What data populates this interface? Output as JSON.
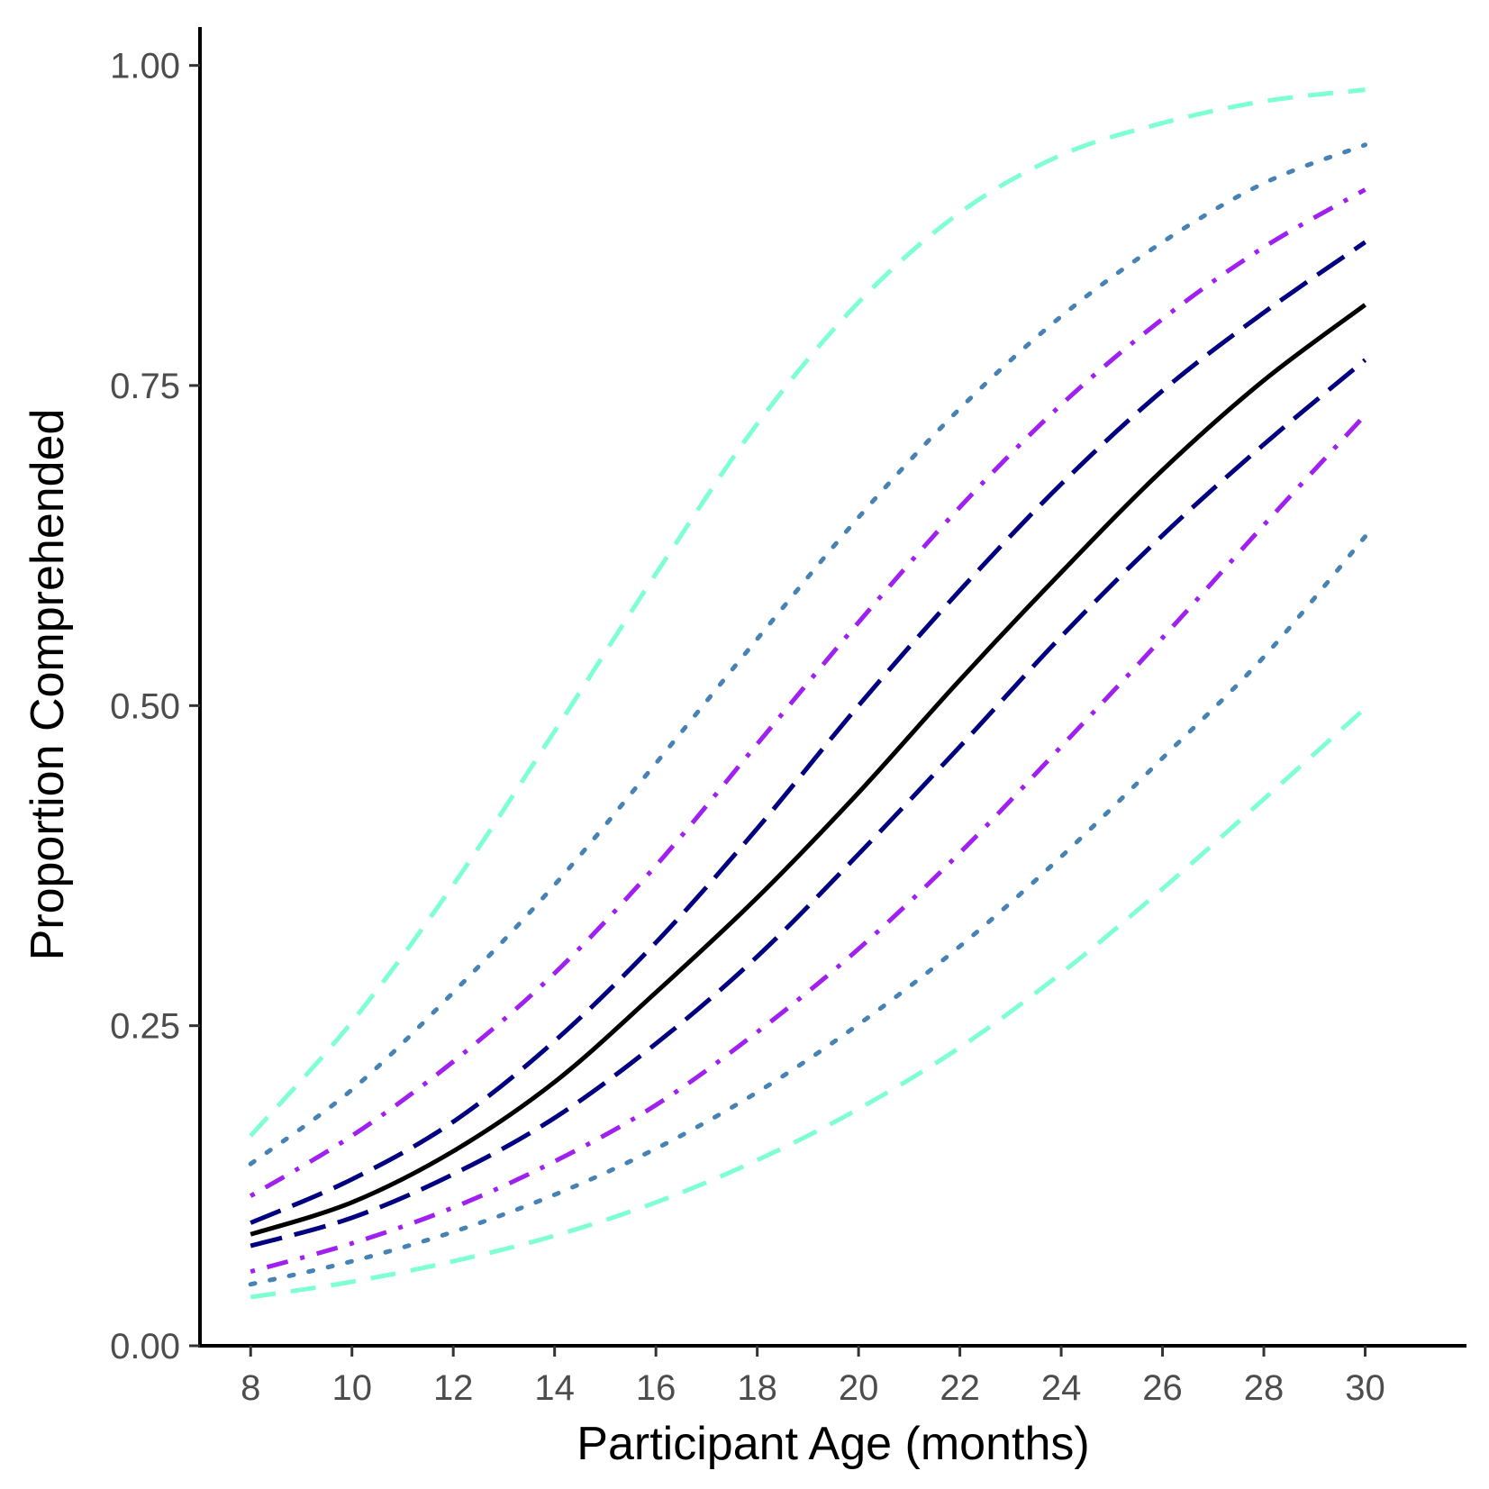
{
  "chart_data": {
    "type": "line",
    "xlabel": "Participant Age (months)",
    "ylabel": "Proportion Comprehended",
    "xlim": [
      7,
      32
    ],
    "ylim": [
      0,
      1.03
    ],
    "x_ticks": [
      8,
      10,
      12,
      14,
      16,
      18,
      20,
      22,
      24,
      26,
      28,
      30
    ],
    "y_ticks": [
      0,
      0.25,
      0.5,
      0.75,
      1.0
    ],
    "y_tick_labels": [
      "0.00",
      "0.25",
      "0.50",
      "0.75",
      "1.00"
    ],
    "grid": false,
    "legend": "none",
    "x": [
      8,
      10,
      12,
      14,
      16,
      18,
      20,
      22,
      24,
      26,
      28,
      30
    ],
    "series": [
      {
        "style": "dashed",
        "color": "#7fffd4",
        "values": [
          0.038,
          0.05,
          0.066,
          0.086,
          0.112,
          0.145,
          0.185,
          0.233,
          0.291,
          0.357,
          0.427,
          0.498
        ]
      },
      {
        "style": "dotted",
        "color": "#4682b4",
        "values": [
          0.048,
          0.066,
          0.089,
          0.118,
          0.154,
          0.198,
          0.251,
          0.312,
          0.382,
          0.459,
          0.538,
          0.632
        ]
      },
      {
        "style": "dotdash",
        "color": "#a020f0",
        "values": [
          0.058,
          0.08,
          0.108,
          0.144,
          0.188,
          0.245,
          0.31,
          0.385,
          0.468,
          0.553,
          0.641,
          0.727
        ]
      },
      {
        "style": "longdash",
        "color": "#000080",
        "values": [
          0.078,
          0.1,
          0.134,
          0.178,
          0.236,
          0.304,
          0.384,
          0.468,
          0.554,
          0.633,
          0.704,
          0.77
        ]
      },
      {
        "style": "solid",
        "color": "#000000",
        "values": [
          0.087,
          0.112,
          0.152,
          0.206,
          0.276,
          0.35,
          0.432,
          0.52,
          0.604,
          0.684,
          0.754,
          0.813
        ]
      },
      {
        "style": "longdash",
        "color": "#000080",
        "values": [
          0.096,
          0.13,
          0.175,
          0.238,
          0.315,
          0.404,
          0.5,
          0.59,
          0.673,
          0.746,
          0.807,
          0.862
        ]
      },
      {
        "style": "dotdash",
        "color": "#a020f0",
        "values": [
          0.117,
          0.164,
          0.222,
          0.291,
          0.375,
          0.47,
          0.565,
          0.655,
          0.735,
          0.802,
          0.858,
          0.903
        ]
      },
      {
        "style": "dotted",
        "color": "#4682b4",
        "values": [
          0.142,
          0.2,
          0.276,
          0.36,
          0.455,
          0.552,
          0.647,
          0.732,
          0.804,
          0.862,
          0.908,
          0.938
        ]
      },
      {
        "style": "dashed",
        "color": "#7fffd4",
        "values": [
          0.164,
          0.253,
          0.36,
          0.48,
          0.603,
          0.72,
          0.815,
          0.885,
          0.93,
          0.955,
          0.972,
          0.981
        ]
      }
    ]
  }
}
